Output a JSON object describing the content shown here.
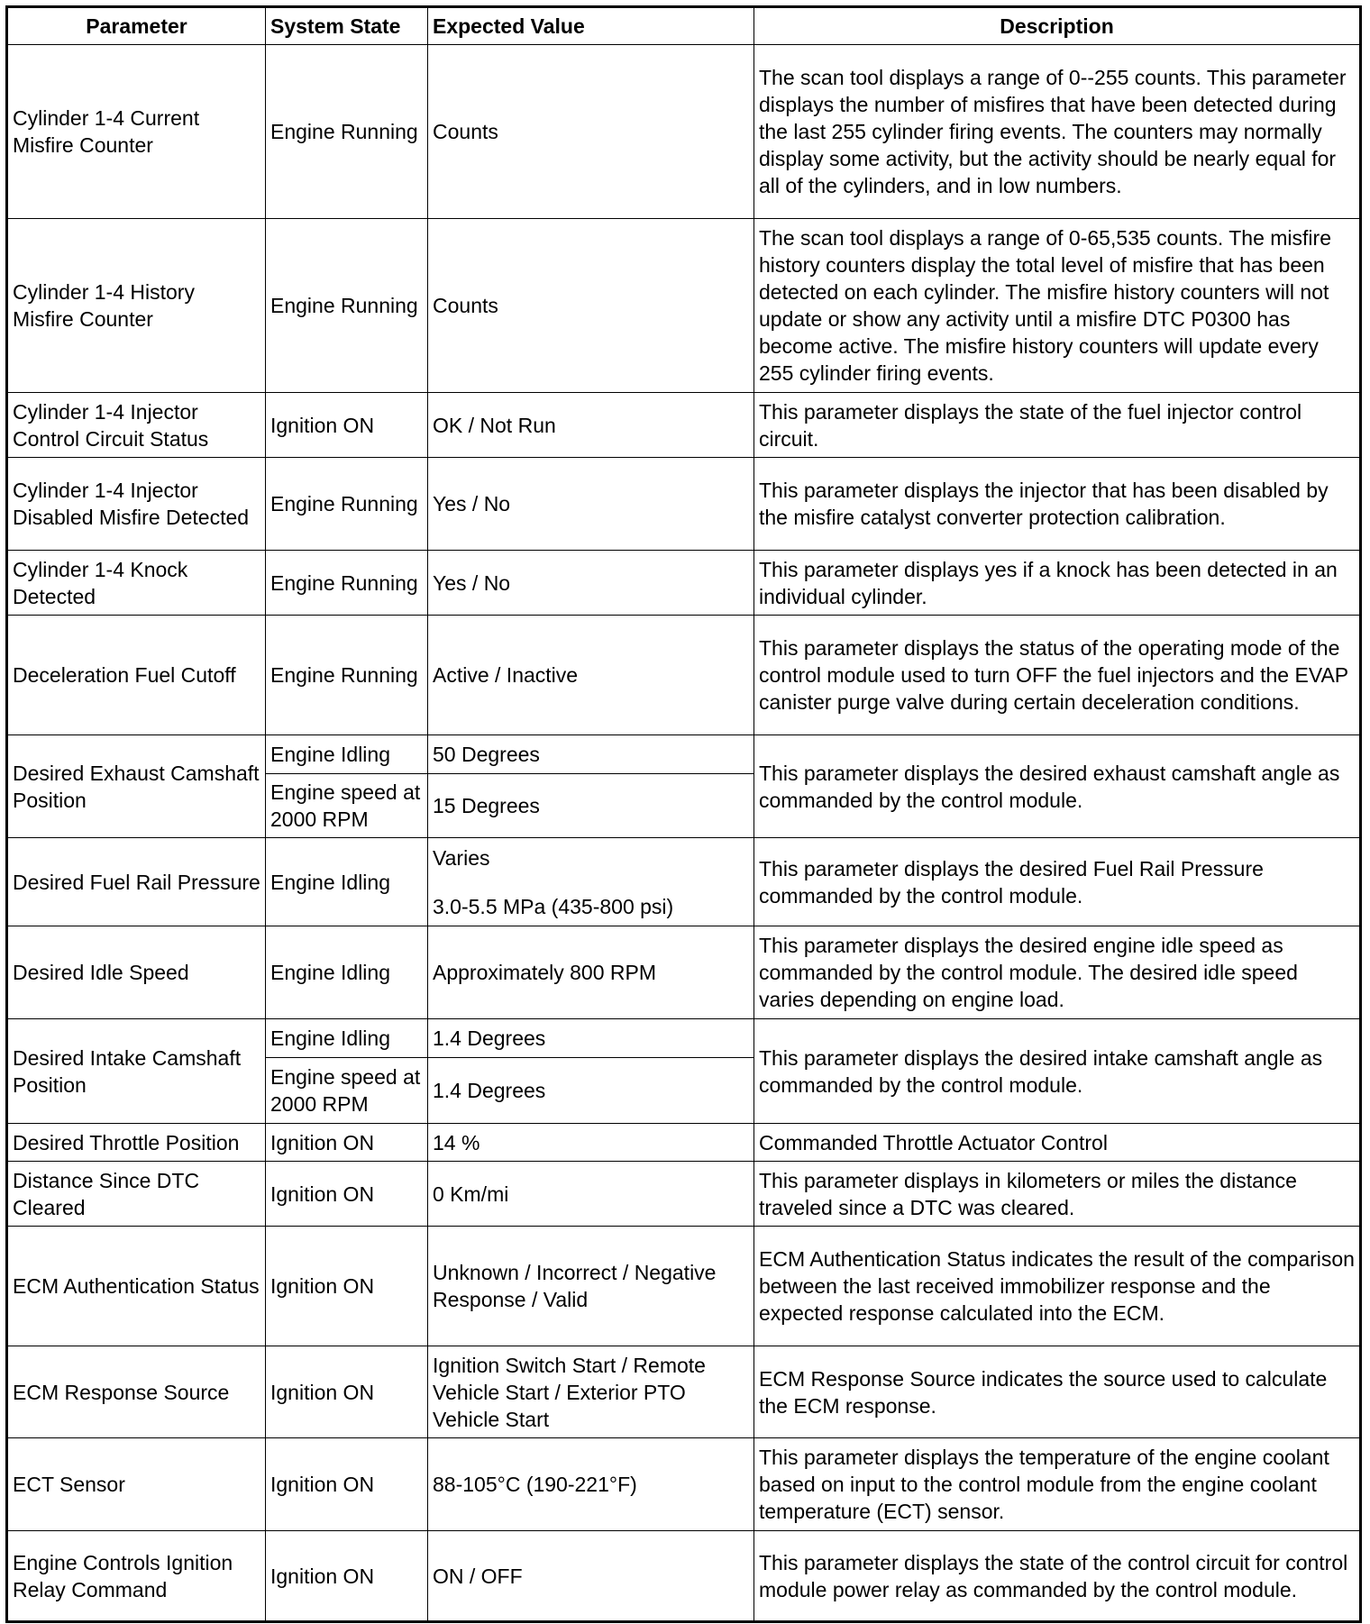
{
  "headers": [
    "Parameter",
    "System State",
    "Expected Value",
    "Description"
  ],
  "rows": [
    {
      "parameter": "Cylinder 1-4 Current Misfire Counter",
      "states": [
        {
          "state": "Engine Running",
          "value": [
            "Counts"
          ]
        }
      ],
      "description": "The scan tool displays a range of 0--255 counts. This parameter displays the number of misfires that have been detected during the last 255 cylinder firing events. The counters may normally display some activity, but the activity should be nearly equal for all of the cylinders, and in low numbers."
    },
    {
      "parameter": "Cylinder 1-4 History Misfire Counter",
      "states": [
        {
          "state": "Engine Running",
          "value": [
            "Counts"
          ]
        }
      ],
      "description": "The scan tool displays a range of 0-65,535 counts. The misfire history counters display the total level of misfire that has been detected on each cylinder. The misfire history counters will not update or show any activity until a misfire DTC P0300 has become active. The misfire history counters will update every 255 cylinder firing events."
    },
    {
      "parameter": "Cylinder 1-4 Injector Control Circuit Status",
      "states": [
        {
          "state": "Ignition ON",
          "value": [
            "OK / Not Run"
          ]
        }
      ],
      "description": "This parameter displays the state of the fuel injector control circuit."
    },
    {
      "parameter": "Cylinder 1-4 Injector Disabled Misfire Detected",
      "states": [
        {
          "state": "Engine Running",
          "value": [
            "Yes / No"
          ]
        }
      ],
      "description": "This parameter displays the injector that has been disabled by the misfire catalyst converter protection calibration."
    },
    {
      "parameter": "Cylinder 1-4 Knock Detected",
      "states": [
        {
          "state": "Engine Running",
          "value": [
            "Yes / No"
          ]
        }
      ],
      "description": "This parameter displays yes if a knock has been detected in an individual cylinder."
    },
    {
      "parameter": "Deceleration Fuel Cutoff",
      "states": [
        {
          "state": "Engine Running",
          "value": [
            "Active / Inactive"
          ]
        }
      ],
      "description": "This parameter displays the status of the operating mode of the control module used to turn OFF the fuel injectors and the EVAP canister purge valve during certain deceleration conditions."
    },
    {
      "parameter": "Desired Exhaust Camshaft Position",
      "states": [
        {
          "state": "Engine Idling",
          "value": [
            "50 Degrees"
          ]
        },
        {
          "state": "Engine speed at 2000 RPM",
          "value": [
            "15 Degrees"
          ]
        }
      ],
      "description": "This parameter displays the desired exhaust camshaft angle as commanded by the control module."
    },
    {
      "parameter": "Desired Fuel Rail Pressure",
      "states": [
        {
          "state": "Engine Idling",
          "value": [
            "Varies",
            "3.0-5.5 MPa (435-800 psi)"
          ]
        }
      ],
      "description": "This parameter displays the desired Fuel Rail Pressure commanded by the control module."
    },
    {
      "parameter": "Desired Idle Speed",
      "states": [
        {
          "state": "Engine Idling",
          "value": [
            "Approximately 800 RPM"
          ]
        }
      ],
      "description": "This parameter displays the desired engine idle speed as commanded by the control module. The desired idle speed varies depending on engine load."
    },
    {
      "parameter": "Desired Intake Camshaft Position",
      "states": [
        {
          "state": "Engine Idling",
          "value": [
            "1.4 Degrees"
          ]
        },
        {
          "state": "Engine speed at 2000 RPM",
          "value": [
            "1.4 Degrees"
          ]
        }
      ],
      "description": "This parameter displays the desired intake camshaft angle as commanded by the control module."
    },
    {
      "parameter": "Desired Throttle Position",
      "states": [
        {
          "state": "Ignition ON",
          "value": [
            "14 %"
          ]
        }
      ],
      "description": "Commanded Throttle Actuator Control"
    },
    {
      "parameter": "Distance Since DTC Cleared",
      "states": [
        {
          "state": "Ignition ON",
          "value": [
            "0 Km/mi"
          ]
        }
      ],
      "description": "This parameter displays in kilometers or miles the distance traveled since a DTC was cleared."
    },
    {
      "parameter": "ECM Authentication Status",
      "states": [
        {
          "state": "Ignition ON",
          "value": [
            "Unknown / Incorrect / Negative Response / Valid"
          ]
        }
      ],
      "description": "ECM Authentication Status indicates the result of the comparison between the last received immobilizer response and the expected response calculated into the ECM."
    },
    {
      "parameter": "ECM Response Source",
      "states": [
        {
          "state": "Ignition ON",
          "value": [
            "Ignition Switch Start / Remote Vehicle Start / Exterior PTO Vehicle Start"
          ]
        }
      ],
      "description": "ECM Response Source indicates the source used to calculate the ECM response."
    },
    {
      "parameter": "ECT Sensor",
      "states": [
        {
          "state": "Ignition ON",
          "value": [
            "88-105°C (190-221°F)"
          ]
        }
      ],
      "description": "This parameter displays the temperature of the engine coolant based on input to the control module from the engine coolant temperature (ECT) sensor."
    },
    {
      "parameter": "Engine Controls Ignition Relay Command",
      "states": [
        {
          "state": "Ignition ON",
          "value": [
            "ON / OFF"
          ]
        }
      ],
      "description": "This parameter displays the state of the control circuit for control module power relay as commanded by the control module."
    }
  ]
}
